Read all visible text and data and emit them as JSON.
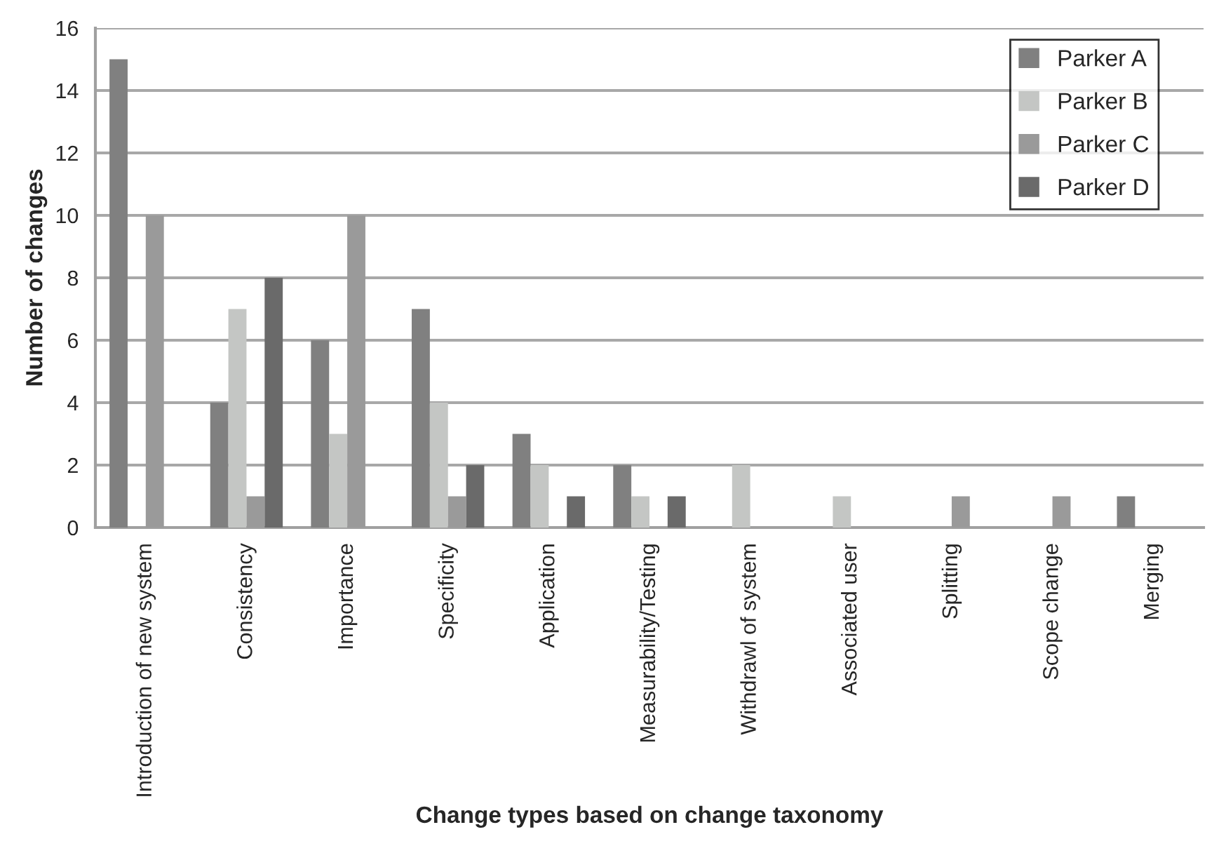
{
  "chart_data": {
    "type": "bar",
    "xlabel": "Change types based on change taxonomy",
    "ylabel": "Number of changes",
    "categories": [
      "Introduction of new system",
      "Consistency",
      "Importance",
      "Specificity",
      "Application",
      "Measurability/Testing",
      "Withdrawl of system",
      "Associated user",
      "Splitting",
      "Scope change",
      "Merging"
    ],
    "series": [
      {
        "name": "Parker A",
        "color": "#808080",
        "values": [
          15,
          4,
          6,
          7,
          3,
          2,
          0,
          0,
          0,
          0,
          1
        ]
      },
      {
        "name": "Parker B",
        "color": "#c4c6c4",
        "values": [
          0,
          7,
          3,
          4,
          2,
          1,
          2,
          1,
          0,
          0,
          0
        ]
      },
      {
        "name": "Parker C",
        "color": "#9a9a9a",
        "values": [
          10,
          1,
          10,
          1,
          0,
          0,
          0,
          0,
          1,
          1,
          0
        ]
      },
      {
        "name": "Parker D",
        "color": "#6a6a6a",
        "values": [
          0,
          8,
          0,
          2,
          1,
          1,
          0,
          0,
          0,
          0,
          0
        ]
      }
    ],
    "ylim": [
      0,
      16
    ],
    "yticks": [
      0,
      2,
      4,
      6,
      8,
      10,
      12,
      14,
      16
    ],
    "grid": "y",
    "legend": "top right"
  }
}
